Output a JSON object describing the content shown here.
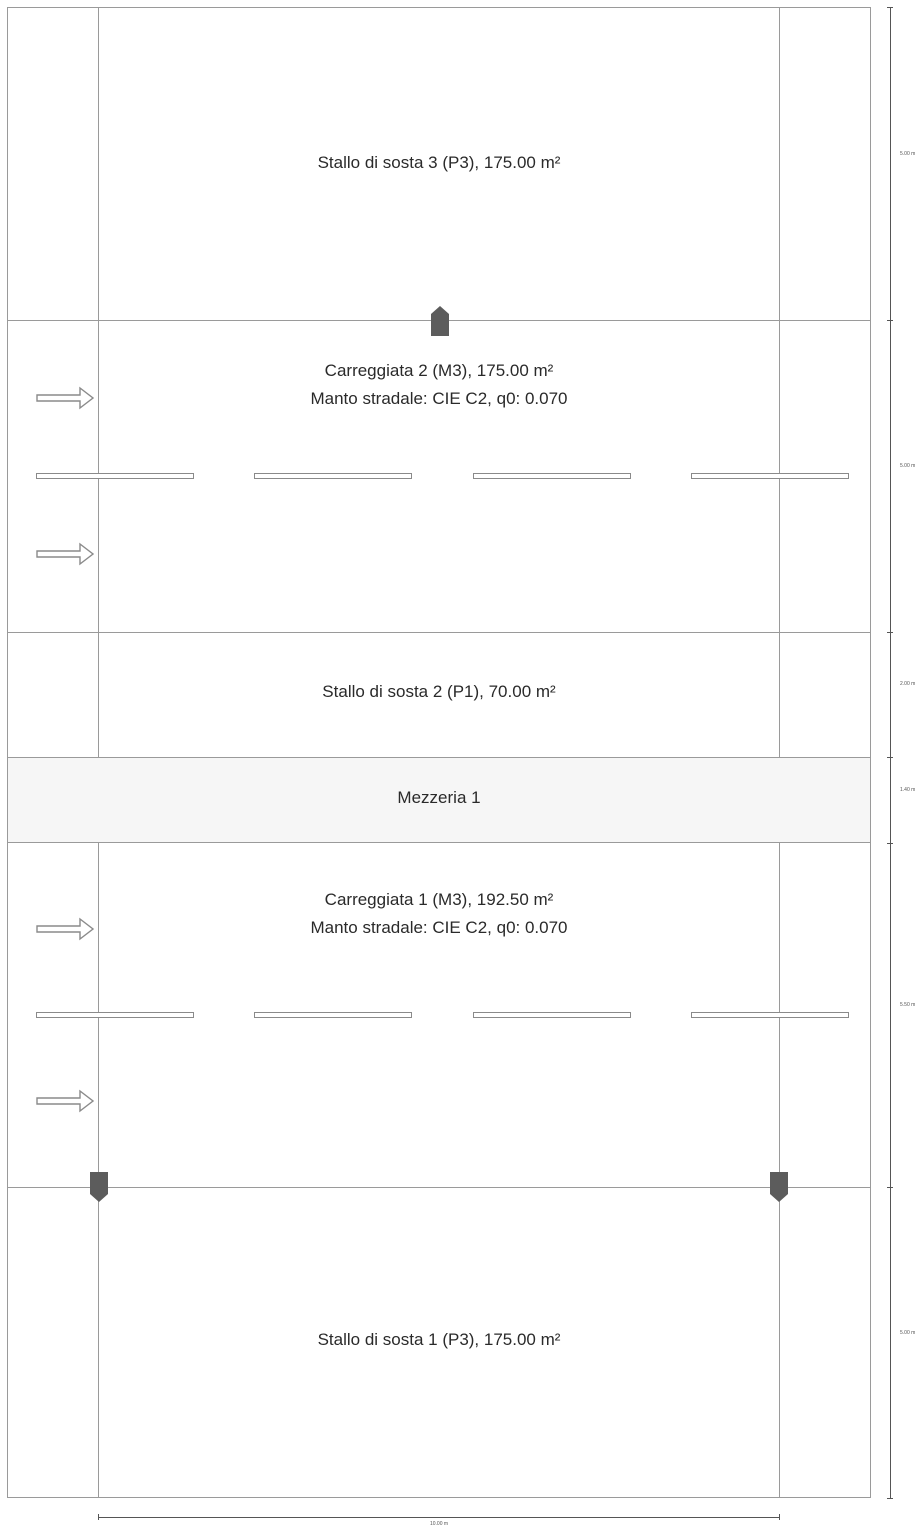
{
  "zones": {
    "stallo3": "Stallo di sosta 3 (P3), 175.00 m²",
    "carreggiata2": {
      "title": "Carreggiata 2 (M3), 175.00 m²",
      "surface": "Manto stradale: CIE C2, q0: 0.070"
    },
    "stallo2": "Stallo di sosta 2 (P1), 70.00 m²",
    "mezzeria": "Mezzeria 1",
    "carreggiata1": {
      "title": "Carreggiata 1 (M3), 192.50 m²",
      "surface": "Manto stradale: CIE C2, q0: 0.070"
    },
    "stallo1": "Stallo di sosta 1 (P3), 175.00 m²"
  },
  "dimensions": {
    "right": [
      "5.00 m",
      "5.00 m",
      "2.00 m",
      "1.40 m",
      "5.50 m",
      "5.00 m"
    ],
    "bottom": "10.00 m"
  },
  "icons": {
    "luminaire": "luminaire-marker-icon",
    "direction": "traffic-direction-arrow-icon"
  },
  "colors": {
    "lines": "#9a9a9a",
    "marker": "#5c5c5c",
    "text": "#2a2a2a"
  }
}
